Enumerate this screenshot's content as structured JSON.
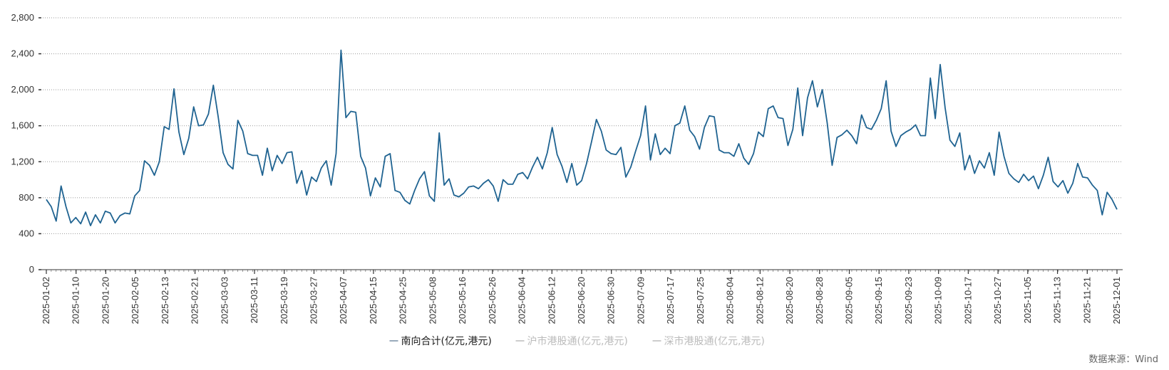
{
  "chart_data": {
    "type": "line",
    "ylim": [
      0,
      2800
    ],
    "yticks": [
      0,
      400,
      800,
      1200,
      1600,
      2000,
      2400,
      2800
    ],
    "ytick_labels": [
      "0",
      "400",
      "800",
      "1,200",
      "1,600",
      "2,000",
      "2,400",
      "2,800"
    ],
    "grid": true,
    "legend_position": "bottom-center",
    "xtick_labels": [
      "2025-01-02",
      "2025-01-10",
      "2025-01-20",
      "2025-02-05",
      "2025-02-13",
      "2025-02-21",
      "2025-03-03",
      "2025-03-11",
      "2025-03-19",
      "2025-03-27",
      "2025-04-07",
      "2025-04-15",
      "2025-04-25",
      "2025-05-08",
      "2025-05-16",
      "2025-05-26",
      "2025-06-04",
      "2025-06-12",
      "2025-06-20",
      "2025-06-30",
      "2025-07-09",
      "2025-07-17",
      "2025-07-25",
      "2025-08-04",
      "2025-08-12",
      "2025-08-20",
      "2025-08-28",
      "2025-09-05",
      "2025-09-15",
      "2025-09-23",
      "2025-10-09",
      "2025-10-17",
      "2025-10-27",
      "2025-11-05",
      "2025-11-13",
      "2025-11-21",
      "2025-12-01"
    ],
    "series": [
      {
        "name": "南向合计(亿元,港元)",
        "color": "#1f6391",
        "visible": true,
        "values": [
          780,
          700,
          540,
          930,
          700,
          520,
          580,
          510,
          640,
          490,
          610,
          520,
          650,
          630,
          520,
          600,
          630,
          620,
          820,
          880,
          1210,
          1160,
          1050,
          1200,
          1590,
          1560,
          2010,
          1530,
          1280,
          1460,
          1810,
          1600,
          1610,
          1730,
          2050,
          1700,
          1300,
          1170,
          1120,
          1660,
          1540,
          1290,
          1270,
          1270,
          1050,
          1350,
          1100,
          1270,
          1180,
          1300,
          1310,
          960,
          1100,
          830,
          1030,
          980,
          1130,
          1210,
          940,
          1290,
          2440,
          1690,
          1760,
          1750,
          1260,
          1130,
          820,
          1020,
          920,
          1260,
          1290,
          880,
          860,
          770,
          730,
          880,
          1010,
          1090,
          820,
          760,
          1520,
          940,
          1010,
          830,
          810,
          850,
          920,
          930,
          900,
          960,
          1000,
          930,
          760,
          1000,
          950,
          950,
          1060,
          1080,
          1010,
          1140,
          1250,
          1120,
          1300,
          1580,
          1280,
          1150,
          970,
          1180,
          940,
          990,
          1180,
          1420,
          1670,
          1540,
          1330,
          1290,
          1280,
          1360,
          1030,
          1140,
          1320,
          1490,
          1820,
          1220,
          1510,
          1280,
          1350,
          1290,
          1600,
          1630,
          1820,
          1550,
          1480,
          1340,
          1580,
          1710,
          1700,
          1330,
          1300,
          1300,
          1260,
          1400,
          1240,
          1170,
          1290,
          1530,
          1480,
          1790,
          1820,
          1690,
          1680,
          1380,
          1560,
          2020,
          1490,
          1910,
          2100,
          1810,
          2000,
          1630,
          1160,
          1470,
          1500,
          1550,
          1490,
          1400,
          1720,
          1580,
          1560,
          1660,
          1790,
          2100,
          1540,
          1370,
          1490,
          1530,
          1560,
          1610,
          1490,
          1490,
          2130,
          1680,
          2280,
          1800,
          1440,
          1370,
          1520,
          1110,
          1270,
          1070,
          1210,
          1130,
          1300,
          1050,
          1530,
          1260,
          1070,
          1010,
          970,
          1060,
          990,
          1040,
          900,
          1050,
          1250,
          980,
          920,
          990,
          850,
          960,
          1180,
          1030,
          1020,
          940,
          880,
          610,
          860,
          780,
          670
        ]
      },
      {
        "name": "沪市港股通(亿元,港元)",
        "color": "#cccccc",
        "visible": false,
        "values": []
      },
      {
        "name": "深市港股通(亿元,港元)",
        "color": "#cccccc",
        "visible": false,
        "values": []
      }
    ]
  },
  "source": "数据来源：Wind"
}
